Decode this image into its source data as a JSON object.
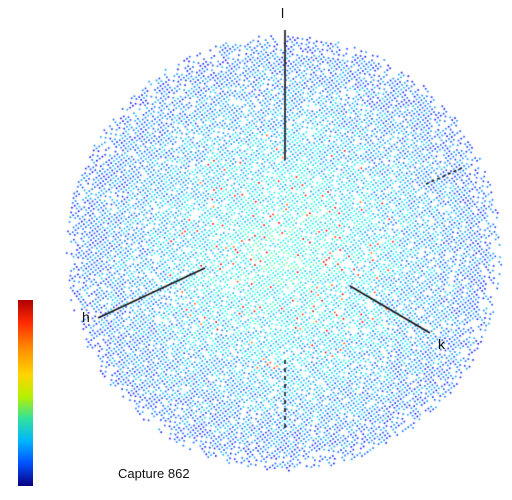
{
  "caption": "Capture 862",
  "axes": {
    "l_label": "l",
    "h_label": "h",
    "k_label": "k"
  },
  "colormap": {
    "name": "jet",
    "stops": [
      "#0a0080",
      "#0050ff",
      "#00b4ff",
      "#30e0a0",
      "#b5f000",
      "#ffd500",
      "#ff8c00",
      "#ff2a00",
      "#b00000"
    ]
  },
  "colors": {
    "background": "#ffffff",
    "axis_line": "#111111",
    "sphere_base": "#1aa7e8",
    "sphere_core": "#7ed84a"
  }
}
